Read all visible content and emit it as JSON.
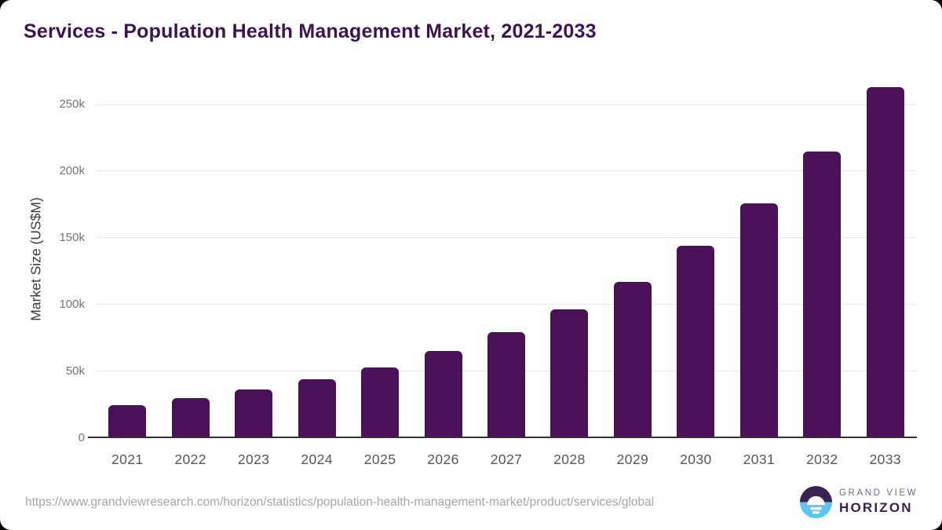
{
  "header": {
    "title": "Services - Population Health Management Market, 2021-2033"
  },
  "chart_data": {
    "type": "bar",
    "title": "Services - Population Health Management Market, 2021-2033",
    "categories": [
      "2021",
      "2022",
      "2023",
      "2024",
      "2025",
      "2026",
      "2027",
      "2028",
      "2029",
      "2030",
      "2031",
      "2032",
      "2033"
    ],
    "values": [
      24000,
      29400,
      35800,
      43700,
      52700,
      64500,
      79100,
      95900,
      116500,
      143500,
      175400,
      214300,
      262700
    ],
    "xlabel": "",
    "ylabel": "Market Size (US$M)",
    "yticks": [
      0,
      50000,
      100000,
      150000,
      200000,
      250000
    ],
    "ytick_labels": [
      "0",
      "50k",
      "100k",
      "150k",
      "200k",
      "250k"
    ],
    "ylim": [
      0,
      269000
    ],
    "grid": "horizontal",
    "legend": "none",
    "bar_color": "#4a1158"
  },
  "footer": {
    "source_url": "https://www.grandviewresearch.com/horizon/statistics/population-health-management-market/product/services/global",
    "logo": {
      "line1": "GRAND VIEW",
      "line2": "HORIZON"
    }
  },
  "colors": {
    "title_text": "#3d1453",
    "bar_fill": "#4a1158",
    "gridline": "#e7e7e7",
    "axis_line": "#333333",
    "ytick_text": "#757575",
    "xtick_text": "#575757",
    "ylabel_text": "#3c3c3c",
    "url_text": "#a6a6a6",
    "logo_dark": "#3a2353",
    "logo_blue": "#5cc6f2",
    "logo_white": "#ffffff",
    "background": "#ffffff"
  }
}
